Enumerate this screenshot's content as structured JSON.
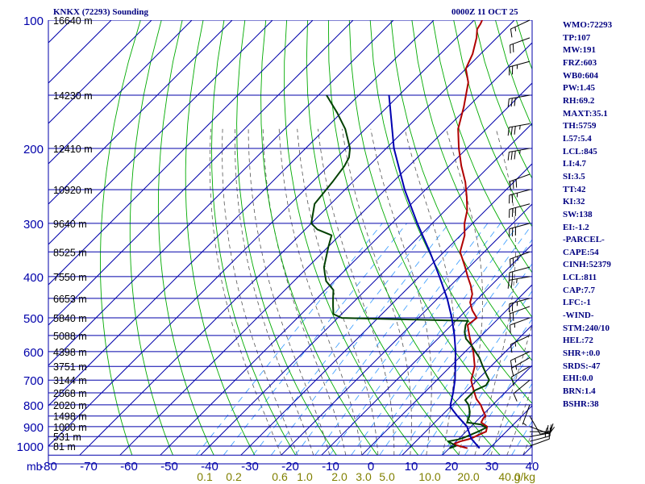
{
  "header": {
    "title": "KNKX (72293) Sounding",
    "timestamp": "0000Z 11 OCT 25"
  },
  "indices": [
    "WMO:72293",
    "TP:107",
    "MW:191",
    "FRZ:603",
    "WB0:604",
    "PW:1.45",
    "RH:69.2",
    "MAXT:35.1",
    "TH:5759",
    "L57:5.4",
    "LCL:845",
    "LI:4.7",
    "SI:3.5",
    "TT:42",
    "KI:32",
    "SW:138",
    "EI:-1.2",
    "-PARCEL-",
    "CAPE:54",
    "CINH:52379",
    "LCL:811",
    "CAP:7.7",
    "LFC:-1",
    "-WIND-",
    "STM:240/10",
    "HEL:72",
    "SHR+:0.0",
    "SRDS:-47",
    "EHI:0.0",
    "BRN:1.4",
    "BSHR:38"
  ],
  "chart_data": {
    "type": "line",
    "title": "KNKX (72293) Sounding",
    "subtitle": "0000Z 11 OCT 25",
    "x_axis": {
      "label": "",
      "range": [
        -80,
        40
      ],
      "ticks": [
        -80,
        -70,
        -60,
        -50,
        -40,
        -30,
        -20,
        -10,
        0,
        10,
        20,
        30,
        40
      ],
      "tick_labels": [
        "-80",
        "-70",
        "-60",
        "-50",
        "-40",
        "-30",
        "-20",
        "-10",
        "0",
        "10",
        "20",
        "30",
        "40"
      ]
    },
    "y_axis": {
      "label": "mb",
      "scale": "log",
      "range": [
        1050,
        100
      ],
      "ticks": [
        100,
        200,
        300,
        400,
        500,
        600,
        700,
        800,
        900,
        1000
      ],
      "tick_labels": [
        "100",
        "200",
        "300",
        "400",
        "500",
        "600",
        "700",
        "800",
        "900",
        "1000"
      ]
    },
    "mixing_ratio_labels": {
      "unit": "g/kg",
      "values": [
        "0.1",
        "0.2",
        "0.6",
        "1.0",
        "2.0",
        "3.0",
        "5.0",
        "10.0",
        "20.0",
        "40.0"
      ]
    },
    "height_labels": [
      {
        "p": 100,
        "label": "16640 m"
      },
      {
        "p": 150,
        "label": "14230 m"
      },
      {
        "p": 200,
        "label": "12410 m"
      },
      {
        "p": 250,
        "label": "10920 m"
      },
      {
        "p": 300,
        "label": "9640 m"
      },
      {
        "p": 350,
        "label": "8525 m"
      },
      {
        "p": 400,
        "label": "7550 m"
      },
      {
        "p": 450,
        "label": "6653 m"
      },
      {
        "p": 500,
        "label": "5840 m"
      },
      {
        "p": 550,
        "label": "5088 m"
      },
      {
        "p": 600,
        "label": "4398 m"
      },
      {
        "p": 650,
        "label": "3751 m"
      },
      {
        "p": 700,
        "label": "3144 m"
      },
      {
        "p": 750,
        "label": "2568 m"
      },
      {
        "p": 800,
        "label": "2020 m"
      },
      {
        "p": 850,
        "label": "1498 m"
      },
      {
        "p": 900,
        "label": "1000 m"
      },
      {
        "p": 950,
        "label": "531 m"
      },
      {
        "p": 1000,
        "label": "81 m"
      }
    ],
    "series": [
      {
        "key": "temperature",
        "color": "#b00000",
        "points": [
          [
            1012,
            24.5
          ],
          [
            1000,
            22
          ],
          [
            990,
            20
          ],
          [
            975,
            21
          ],
          [
            960,
            23
          ],
          [
            940,
            24
          ],
          [
            925,
            25
          ],
          [
            900,
            24
          ],
          [
            880,
            21.5
          ],
          [
            860,
            21
          ],
          [
            850,
            21
          ],
          [
            825,
            19
          ],
          [
            800,
            17
          ],
          [
            775,
            14.5
          ],
          [
            750,
            12.5
          ],
          [
            725,
            10.5
          ],
          [
            700,
            8.5
          ],
          [
            650,
            6
          ],
          [
            600,
            2
          ],
          [
            570,
            -1
          ],
          [
            550,
            -3
          ],
          [
            520,
            -6
          ],
          [
            500,
            -5.5
          ],
          [
            480,
            -8.5
          ],
          [
            460,
            -11
          ],
          [
            440,
            -12.5
          ],
          [
            420,
            -15
          ],
          [
            400,
            -18
          ],
          [
            380,
            -21
          ],
          [
            350,
            -26
          ],
          [
            320,
            -29
          ],
          [
            300,
            -32
          ],
          [
            280,
            -34.5
          ],
          [
            260,
            -38
          ],
          [
            240,
            -42
          ],
          [
            220,
            -47
          ],
          [
            200,
            -52
          ],
          [
            180,
            -57
          ],
          [
            160,
            -61
          ],
          [
            140,
            -66
          ],
          [
            130,
            -70
          ],
          [
            120,
            -72
          ],
          [
            110,
            -75
          ],
          [
            105,
            -77
          ],
          [
            102,
            -77.5
          ],
          [
            100,
            -78
          ]
        ]
      },
      {
        "key": "dewpoint",
        "color": "#004000",
        "points": [
          [
            1012,
            20
          ],
          [
            1000,
            21
          ],
          [
            990,
            20
          ],
          [
            975,
            18
          ],
          [
            965,
            20
          ],
          [
            955,
            21
          ],
          [
            940,
            22
          ],
          [
            925,
            23
          ],
          [
            905,
            24
          ],
          [
            890,
            22
          ],
          [
            880,
            18
          ],
          [
            850,
            17
          ],
          [
            830,
            16
          ],
          [
            800,
            14
          ],
          [
            780,
            12
          ],
          [
            755,
            12
          ],
          [
            740,
            12
          ],
          [
            720,
            13.5
          ],
          [
            700,
            13
          ],
          [
            680,
            11
          ],
          [
            650,
            8
          ],
          [
            620,
            5
          ],
          [
            600,
            2.5
          ],
          [
            580,
            0
          ],
          [
            560,
            -3
          ],
          [
            540,
            -5
          ],
          [
            520,
            -6.5
          ],
          [
            508,
            -7
          ],
          [
            505,
            -20
          ],
          [
            500,
            -39
          ],
          [
            490,
            -42
          ],
          [
            470,
            -44
          ],
          [
            450,
            -46
          ],
          [
            430,
            -48
          ],
          [
            410,
            -52
          ],
          [
            395,
            -54
          ],
          [
            380,
            -56
          ],
          [
            340,
            -60
          ],
          [
            320,
            -62
          ],
          [
            310,
            -67
          ],
          [
            300,
            -70
          ],
          [
            270,
            -74
          ],
          [
            240,
            -75
          ],
          [
            220,
            -76
          ],
          [
            210,
            -77
          ],
          [
            200,
            -79
          ],
          [
            180,
            -85
          ],
          [
            165,
            -91
          ],
          [
            150,
            -98
          ]
        ]
      },
      {
        "key": "parcel",
        "color": "#0000b0",
        "points": [
          [
            1012,
            27.5
          ],
          [
            960,
            23
          ],
          [
            900,
            19
          ],
          [
            850,
            14
          ],
          [
            811,
            10.2
          ],
          [
            800,
            9.5
          ],
          [
            750,
            7.2
          ],
          [
            700,
            4.5
          ],
          [
            650,
            1.2
          ],
          [
            600,
            -2.4
          ],
          [
            550,
            -6.7
          ],
          [
            500,
            -11.7
          ],
          [
            450,
            -17.7
          ],
          [
            400,
            -25
          ],
          [
            350,
            -33.5
          ],
          [
            300,
            -43.7
          ],
          [
            250,
            -55.2
          ],
          [
            200,
            -68.1
          ],
          [
            150,
            -82.5
          ]
        ]
      }
    ],
    "wind_barbs": [
      {
        "p": 1000,
        "dir": 70,
        "spd": 10
      },
      {
        "p": 975,
        "dir": 75,
        "spd": 15
      },
      {
        "p": 950,
        "dir": 80,
        "spd": 20
      },
      {
        "p": 925,
        "dir": 90,
        "spd": 15
      },
      {
        "p": 900,
        "dir": 110,
        "spd": 10
      },
      {
        "p": 850,
        "dir": 150,
        "spd": 10
      },
      {
        "p": 800,
        "dir": 200,
        "spd": 5
      },
      {
        "p": 700,
        "dir": 230,
        "spd": 10
      },
      {
        "p": 650,
        "dir": 240,
        "spd": 10
      },
      {
        "p": 620,
        "dir": 240,
        "spd": 15
      },
      {
        "p": 600,
        "dir": 245,
        "spd": 15
      },
      {
        "p": 550,
        "dir": 245,
        "spd": 15
      },
      {
        "p": 500,
        "dir": 250,
        "spd": 15
      },
      {
        "p": 470,
        "dir": 250,
        "spd": 20
      },
      {
        "p": 450,
        "dir": 255,
        "spd": 25
      },
      {
        "p": 400,
        "dir": 260,
        "spd": 25
      },
      {
        "p": 380,
        "dir": 255,
        "spd": 20
      },
      {
        "p": 350,
        "dir": 250,
        "spd": 25
      },
      {
        "p": 300,
        "dir": 255,
        "spd": 30
      },
      {
        "p": 270,
        "dir": 255,
        "spd": 30
      },
      {
        "p": 250,
        "dir": 255,
        "spd": 25
      },
      {
        "p": 230,
        "dir": 250,
        "spd": 30
      },
      {
        "p": 200,
        "dir": 260,
        "spd": 35
      },
      {
        "p": 175,
        "dir": 260,
        "spd": 35
      },
      {
        "p": 150,
        "dir": 260,
        "spd": 30
      },
      {
        "p": 125,
        "dir": 255,
        "spd": 25
      },
      {
        "p": 110,
        "dir": 250,
        "spd": 20
      },
      {
        "p": 100,
        "dir": 245,
        "spd": 15
      }
    ],
    "colors": {
      "isobar": "#0000aa",
      "isotherm": "#0000aa",
      "dry_adiabat": "#00aa00",
      "moist_adiabat": "#555555",
      "mixing_ratio": "#3399ff",
      "axis_text": "#0000aa",
      "mixing_text": "#808000",
      "height_text": "#000000",
      "wind_barb": "#000000"
    }
  }
}
